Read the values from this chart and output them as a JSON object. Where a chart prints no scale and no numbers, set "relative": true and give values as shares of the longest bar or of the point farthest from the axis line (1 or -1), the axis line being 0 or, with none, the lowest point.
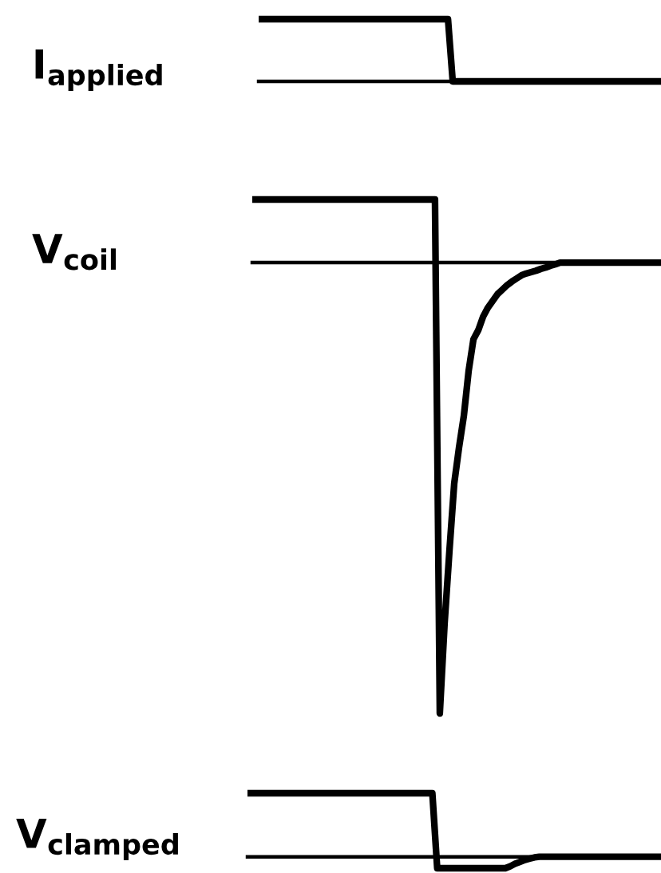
{
  "chart_data": [
    {
      "type": "line",
      "ylabel": "I$_{applied}$",
      "relative": true,
      "categories": [
        null,
        null,
        null,
        null,
        null,
        null,
        null,
        null,
        null,
        null,
        null,
        null,
        null,
        null,
        null,
        null,
        null,
        null,
        null,
        null,
        null,
        null,
        null,
        null,
        null,
        null,
        null,
        null,
        null,
        null,
        null,
        null,
        null,
        null,
        null,
        null,
        null,
        null,
        null,
        null,
        null,
        null,
        null,
        null,
        null,
        null,
        null,
        null,
        null,
        null,
        null,
        null,
        null,
        null,
        null,
        null,
        null,
        null,
        null,
        null,
        null,
        null,
        null,
        null,
        null,
        null,
        null,
        null,
        null,
        null,
        null,
        null,
        null,
        null,
        null,
        null,
        null,
        null,
        null,
        null,
        null,
        null,
        null,
        null,
        null,
        null
      ],
      "series": [
        {
          "color": "#000000",
          "values": [
            1,
            1,
            1,
            1,
            1,
            1,
            1,
            1,
            1,
            1,
            1,
            1,
            1,
            1,
            1,
            1,
            1,
            1,
            1,
            1,
            1,
            1,
            1,
            1,
            1,
            1,
            1,
            1,
            1,
            1,
            1,
            1,
            1,
            1,
            1,
            1,
            1,
            1,
            1,
            1,
            1,
            0,
            0,
            0,
            0,
            0,
            0,
            0,
            0,
            0,
            0,
            0,
            0,
            0,
            0,
            0,
            0,
            0,
            0,
            0,
            0,
            0,
            0,
            0,
            0,
            0,
            0,
            0,
            0,
            0,
            0,
            0,
            0,
            0,
            0,
            0,
            0,
            0,
            0,
            0,
            0,
            0,
            0,
            0,
            0,
            0
          ]
        }
      ]
    },
    {
      "type": "line",
      "ylabel": "V$_{coil}$",
      "relative": true,
      "categories": [
        null,
        null,
        null,
        null,
        null,
        null,
        null,
        null,
        null,
        null,
        null,
        null,
        null,
        null,
        null,
        null,
        null,
        null,
        null,
        null,
        null,
        null,
        null,
        null,
        null,
        null,
        null,
        null,
        null,
        null,
        null,
        null,
        null,
        null,
        null,
        null,
        null,
        null,
        null,
        null,
        null,
        null,
        null,
        null,
        null,
        null,
        null,
        null,
        null,
        null,
        null,
        null,
        null,
        null,
        null,
        null,
        null,
        null,
        null,
        null,
        null,
        null,
        null,
        null,
        null,
        null,
        null,
        null,
        null,
        null,
        null,
        null,
        null,
        null,
        null,
        null,
        null,
        null,
        null,
        null,
        null,
        null,
        null,
        null,
        null,
        null
      ],
      "series": [
        {
          "color": "#000000",
          "values": [
            0.14,
            0.14,
            0.14,
            0.14,
            0.14,
            0.14,
            0.14,
            0.14,
            0.14,
            0.14,
            0.14,
            0.14,
            0.14,
            0.14,
            0.14,
            0.14,
            0.14,
            0.14,
            0.14,
            0.14,
            0.14,
            0.14,
            0.14,
            0.14,
            0.14,
            0.14,
            0.14,
            0.14,
            0.14,
            0.14,
            0.14,
            0.14,
            0.14,
            0.14,
            0.14,
            0.14,
            0.14,
            0.14,
            0.14,
            -1,
            -0.8,
            -0.64,
            -0.49,
            -0.41,
            -0.34,
            -0.24,
            -0.17,
            -0.15,
            -0.12,
            -0.1,
            -0.085,
            -0.07,
            -0.06,
            -0.05,
            -0.042,
            -0.035,
            -0.028,
            -0.024,
            -0.021,
            -0.018,
            -0.014,
            -0.011,
            -0.007,
            -0.004,
            0,
            0,
            0,
            0,
            0,
            0,
            0,
            0,
            0,
            0,
            0,
            0,
            0,
            0,
            0,
            0,
            0,
            0,
            0,
            0,
            0,
            0
          ]
        }
      ]
    },
    {
      "type": "line",
      "ylabel": "V$_{clamped}$",
      "relative": true,
      "categories": [
        null,
        null,
        null,
        null,
        null,
        null,
        null,
        null,
        null,
        null,
        null,
        null,
        null,
        null,
        null,
        null,
        null,
        null,
        null,
        null,
        null,
        null,
        null,
        null,
        null,
        null,
        null,
        null,
        null,
        null,
        null,
        null,
        null,
        null,
        null,
        null,
        null,
        null,
        null,
        null,
        null,
        null,
        null,
        null,
        null,
        null,
        null,
        null,
        null,
        null,
        null,
        null,
        null,
        null,
        null,
        null,
        null,
        null,
        null,
        null,
        null,
        null,
        null,
        null,
        null,
        null,
        null,
        null,
        null,
        null,
        null,
        null,
        null,
        null,
        null,
        null,
        null,
        null,
        null,
        null,
        null,
        null,
        null,
        null,
        null,
        null
      ],
      "series": [
        {
          "color": "#000000",
          "values": [
            1,
            1,
            1,
            1,
            1,
            1,
            1,
            1,
            1,
            1,
            1,
            1,
            1,
            1,
            1,
            1,
            1,
            1,
            1,
            1,
            1,
            1,
            1,
            1,
            1,
            1,
            1,
            1,
            1,
            1,
            1,
            1,
            1,
            1,
            1,
            1,
            1,
            1,
            1,
            -0.18,
            -0.18,
            -0.18,
            -0.18,
            -0.18,
            -0.18,
            -0.18,
            -0.18,
            -0.18,
            -0.18,
            -0.18,
            -0.18,
            -0.18,
            -0.18,
            -0.18,
            -0.15,
            -0.11,
            -0.08,
            -0.05,
            -0.03,
            -0.01,
            0,
            0,
            0,
            0,
            0,
            0,
            0,
            0,
            0,
            0,
            0,
            0,
            0,
            0,
            0,
            0,
            0,
            0,
            0,
            0,
            0,
            0,
            0,
            0,
            0,
            0
          ]
        }
      ]
    }
  ]
}
